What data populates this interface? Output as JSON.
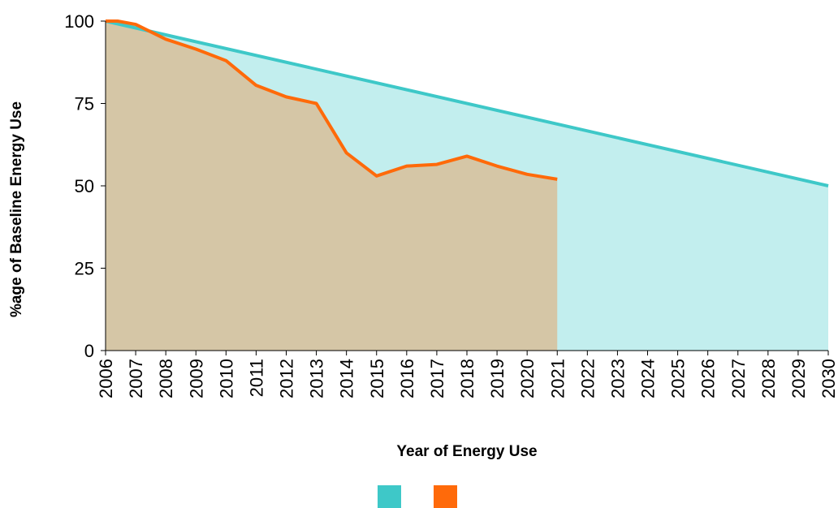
{
  "chart_data": {
    "type": "area",
    "xlabel": "Year of Energy Use",
    "ylabel": "%age of Baseline Energy Use",
    "xlim": [
      2006,
      2030
    ],
    "xticks": [
      2006,
      2007,
      2008,
      2009,
      2010,
      2011,
      2012,
      2013,
      2014,
      2015,
      2016,
      2017,
      2018,
      2019,
      2020,
      2021,
      2022,
      2023,
      2024,
      2025,
      2026,
      2027,
      2028,
      2029,
      2030
    ],
    "ylim": [
      0,
      100
    ],
    "yticks": [
      0,
      25,
      50,
      75,
      100
    ],
    "series": [
      {
        "color": "#3ec8c8",
        "fill_color": "#c2eeee",
        "x": [
          2006,
          2030
        ],
        "values": [
          100,
          50
        ]
      },
      {
        "color": "#ff6a0a",
        "fill_color": "#d5c6a6",
        "x": [
          2006,
          2006.4,
          2007,
          2008,
          2009,
          2010,
          2011,
          2012,
          2013,
          2014,
          2015,
          2016,
          2017,
          2018,
          2019,
          2020,
          2021
        ],
        "values": [
          100,
          100,
          99,
          94.5,
          91.5,
          88,
          80.5,
          77,
          75,
          60,
          53,
          56,
          56.5,
          59,
          56,
          53.5,
          52
        ]
      }
    ]
  }
}
